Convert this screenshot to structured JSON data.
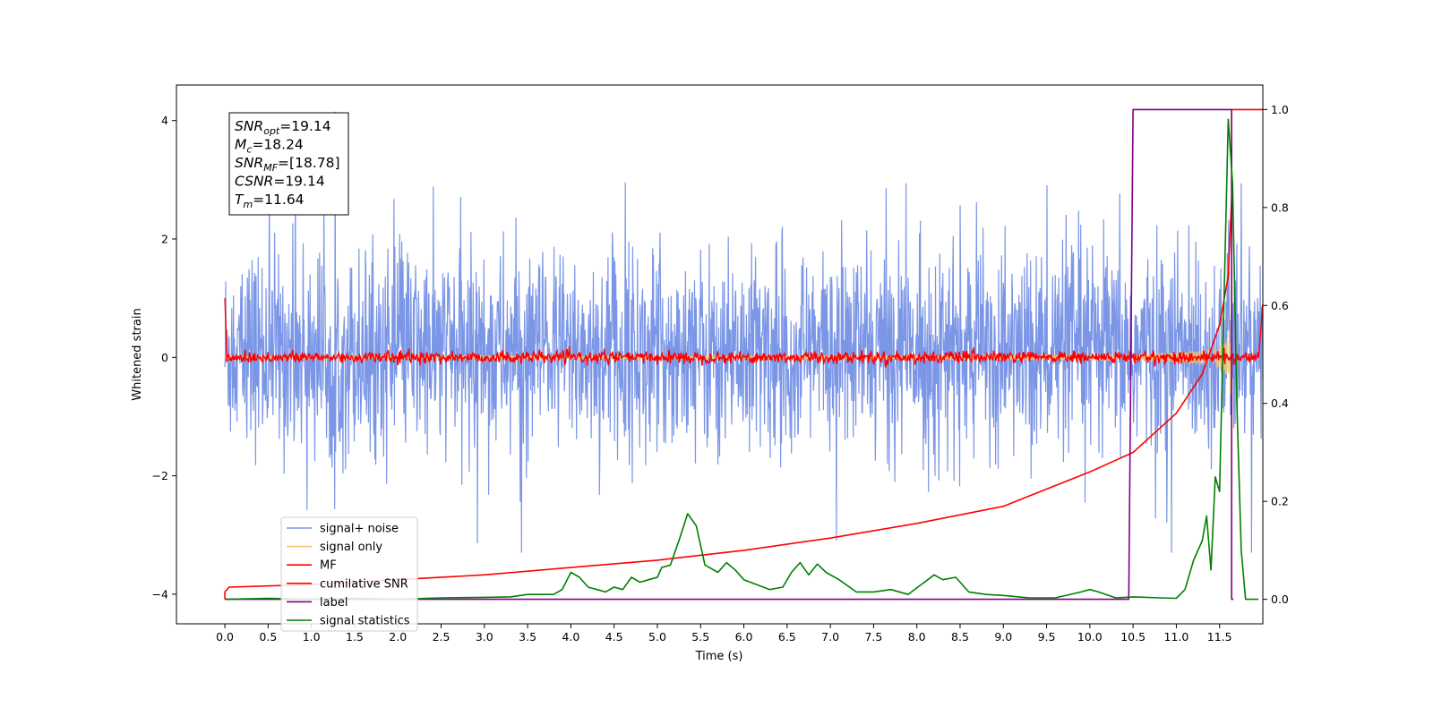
{
  "chart_data": {
    "type": "line",
    "xlabel": "Time (s)",
    "ylabel": "Whitened strain",
    "xlim": [
      -0.56,
      12.0
    ],
    "ylim": [
      -4.5,
      4.6
    ],
    "y2lim": [
      -0.05,
      1.05
    ],
    "x_ticks": [
      "0.0",
      "0.5",
      "1.0",
      "1.5",
      "2.0",
      "2.5",
      "3.0",
      "3.5",
      "4.0",
      "4.5",
      "5.0",
      "5.5",
      "6.0",
      "6.5",
      "7.0",
      "7.5",
      "8.0",
      "8.5",
      "9.0",
      "9.5",
      "10.0",
      "10.5",
      "11.0",
      "11.5"
    ],
    "y_ticks": [
      "4",
      "2",
      "0",
      "−2",
      "−4"
    ],
    "y2_ticks": [
      "1.0",
      "0.8",
      "0.6",
      "0.4",
      "0.2",
      "0.0"
    ],
    "annotations": [
      {
        "var": "SNR",
        "sub": "opt",
        "value": "=19.14"
      },
      {
        "var": "M",
        "sub": "c",
        "value": "=18.24"
      },
      {
        "var": "SNR",
        "sub": "MF",
        "value": "=[18.78]"
      },
      {
        "var": "CSNR",
        "sub": "",
        "value": "=19.14"
      },
      {
        "var": "T",
        "sub": "m",
        "value": "=11.64"
      }
    ],
    "legend_position": "lower-left",
    "series": [
      {
        "name": "signal+ noise",
        "axis": "left",
        "color": "#7b96e6",
        "noise_std": 0.85,
        "offset": 0.1,
        "x_range": [
          0.0,
          12.0
        ]
      },
      {
        "name": "signal only",
        "axis": "left",
        "color": "#f5c76b",
        "chirp_end": 11.64,
        "peak_amplitude": 2.6
      },
      {
        "name": "MF",
        "axis": "left",
        "color": "#ff0000",
        "level": 0.0,
        "noise": 0.05,
        "edge_values": [
          1.0,
          0.9
        ]
      },
      {
        "name": "cumilative SNR",
        "axis": "right",
        "color": "#ff0000",
        "points": [
          [
            0,
            0.0
          ],
          [
            0,
            0.015
          ],
          [
            0.05,
            0.025
          ],
          [
            1,
            0.03
          ],
          [
            2,
            0.04
          ],
          [
            3,
            0.05
          ],
          [
            4,
            0.065
          ],
          [
            5,
            0.08
          ],
          [
            6,
            0.1
          ],
          [
            7,
            0.125
          ],
          [
            8,
            0.155
          ],
          [
            9,
            0.19
          ],
          [
            10,
            0.26
          ],
          [
            10.5,
            0.3
          ],
          [
            11,
            0.38
          ],
          [
            11.3,
            0.46
          ],
          [
            11.5,
            0.56
          ],
          [
            11.6,
            0.66
          ],
          [
            11.64,
            0.82
          ],
          [
            11.64,
            1.0
          ],
          [
            12,
            1.0
          ]
        ]
      },
      {
        "name": "label",
        "axis": "right",
        "color": "#800080",
        "points": [
          [
            0,
            0.0
          ],
          [
            10.45,
            0.0
          ],
          [
            10.5,
            1.0
          ],
          [
            11.64,
            1.0
          ],
          [
            11.64,
            0.0
          ],
          [
            11.66,
            0.0
          ]
        ]
      },
      {
        "name": "signal statistics",
        "axis": "right",
        "color": "#008000",
        "points": [
          [
            0,
            0.0
          ],
          [
            0.5,
            0.002
          ],
          [
            1.0,
            0.0
          ],
          [
            1.5,
            0.002
          ],
          [
            2.0,
            0.0
          ],
          [
            2.5,
            0.003
          ],
          [
            3.0,
            0.004
          ],
          [
            3.3,
            0.005
          ],
          [
            3.5,
            0.01
          ],
          [
            3.8,
            0.01
          ],
          [
            3.9,
            0.02
          ],
          [
            4.0,
            0.055
          ],
          [
            4.1,
            0.045
          ],
          [
            4.2,
            0.025
          ],
          [
            4.3,
            0.02
          ],
          [
            4.4,
            0.015
          ],
          [
            4.5,
            0.025
          ],
          [
            4.6,
            0.02
          ],
          [
            4.7,
            0.045
          ],
          [
            4.8,
            0.035
          ],
          [
            4.9,
            0.04
          ],
          [
            5.0,
            0.045
          ],
          [
            5.05,
            0.065
          ],
          [
            5.15,
            0.07
          ],
          [
            5.25,
            0.12
          ],
          [
            5.35,
            0.175
          ],
          [
            5.45,
            0.15
          ],
          [
            5.55,
            0.07
          ],
          [
            5.7,
            0.055
          ],
          [
            5.8,
            0.075
          ],
          [
            5.9,
            0.06
          ],
          [
            6.0,
            0.04
          ],
          [
            6.15,
            0.03
          ],
          [
            6.3,
            0.02
          ],
          [
            6.45,
            0.025
          ],
          [
            6.55,
            0.055
          ],
          [
            6.65,
            0.075
          ],
          [
            6.75,
            0.05
          ],
          [
            6.85,
            0.072
          ],
          [
            6.95,
            0.055
          ],
          [
            7.1,
            0.04
          ],
          [
            7.3,
            0.015
          ],
          [
            7.5,
            0.015
          ],
          [
            7.7,
            0.02
          ],
          [
            7.9,
            0.01
          ],
          [
            8.05,
            0.03
          ],
          [
            8.2,
            0.05
          ],
          [
            8.3,
            0.04
          ],
          [
            8.45,
            0.045
          ],
          [
            8.6,
            0.015
          ],
          [
            8.8,
            0.01
          ],
          [
            9.0,
            0.008
          ],
          [
            9.3,
            0.003
          ],
          [
            9.6,
            0.003
          ],
          [
            9.9,
            0.015
          ],
          [
            10.0,
            0.02
          ],
          [
            10.1,
            0.015
          ],
          [
            10.3,
            0.003
          ],
          [
            10.5,
            0.005
          ],
          [
            10.8,
            0.003
          ],
          [
            11.0,
            0.002
          ],
          [
            11.1,
            0.02
          ],
          [
            11.2,
            0.08
          ],
          [
            11.3,
            0.12
          ],
          [
            11.35,
            0.17
          ],
          [
            11.4,
            0.06
          ],
          [
            11.45,
            0.25
          ],
          [
            11.5,
            0.22
          ],
          [
            11.55,
            0.6
          ],
          [
            11.6,
            0.98
          ],
          [
            11.65,
            0.85
          ],
          [
            11.7,
            0.4
          ],
          [
            11.75,
            0.1
          ],
          [
            11.8,
            0.0
          ],
          [
            11.95,
            0.0
          ]
        ]
      }
    ]
  }
}
